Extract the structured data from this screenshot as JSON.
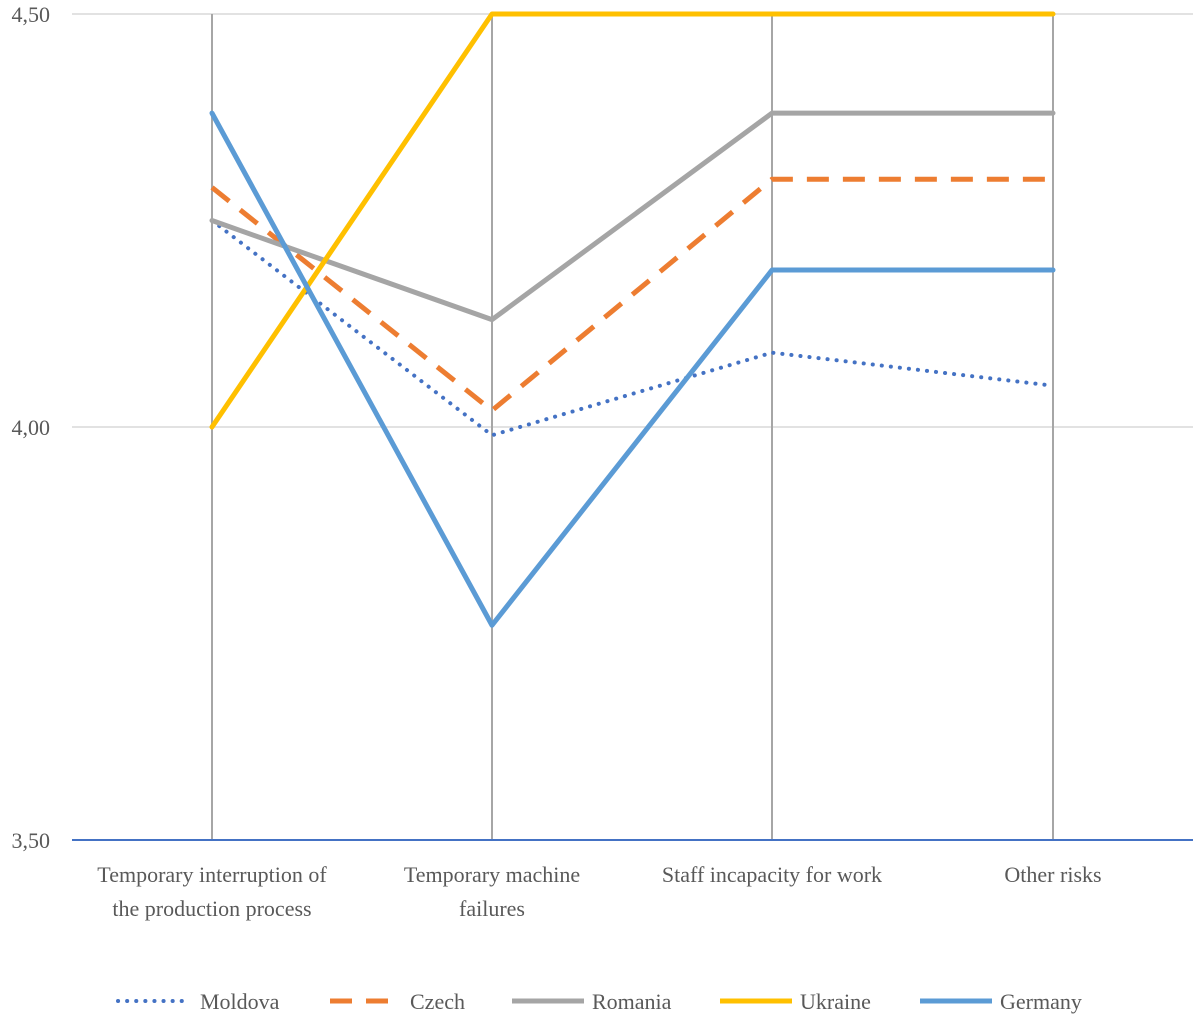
{
  "chart_data": {
    "type": "line",
    "categories": [
      [
        "Temporary interruption of",
        "the production process"
      ],
      [
        "Temporary machine",
        "failures"
      ],
      [
        "Staff incapacity for work"
      ],
      [
        "Other risks"
      ]
    ],
    "ylim": [
      3.5,
      4.5
    ],
    "yticks": [
      "3,50",
      "4,00",
      "4,50"
    ],
    "ytick_values": [
      3.5,
      4.0,
      4.5
    ],
    "grid": true,
    "legend_position": "bottom",
    "series": [
      {
        "name": "Moldova",
        "values": [
          4.25,
          3.99,
          4.09,
          4.05
        ],
        "color": "#4472C4",
        "style": "dotted"
      },
      {
        "name": "Czech",
        "values": [
          4.29,
          4.02,
          4.3,
          4.3
        ],
        "color": "#ED7D31",
        "style": "dashed"
      },
      {
        "name": "Romania",
        "values": [
          4.25,
          4.13,
          4.38,
          4.38
        ],
        "color": "#A5A5A5",
        "style": "solid"
      },
      {
        "name": "Ukraine",
        "values": [
          4.0,
          4.5,
          4.5,
          4.5
        ],
        "color": "#FFC000",
        "style": "solid"
      },
      {
        "name": "Germany",
        "values": [
          4.38,
          3.76,
          4.19,
          4.19
        ],
        "color": "#5B9BD5",
        "style": "solid"
      }
    ],
    "axis_color": "#4472C4",
    "grid_color": "#D9D9D9",
    "category_line_color": "#A6A6A6"
  }
}
